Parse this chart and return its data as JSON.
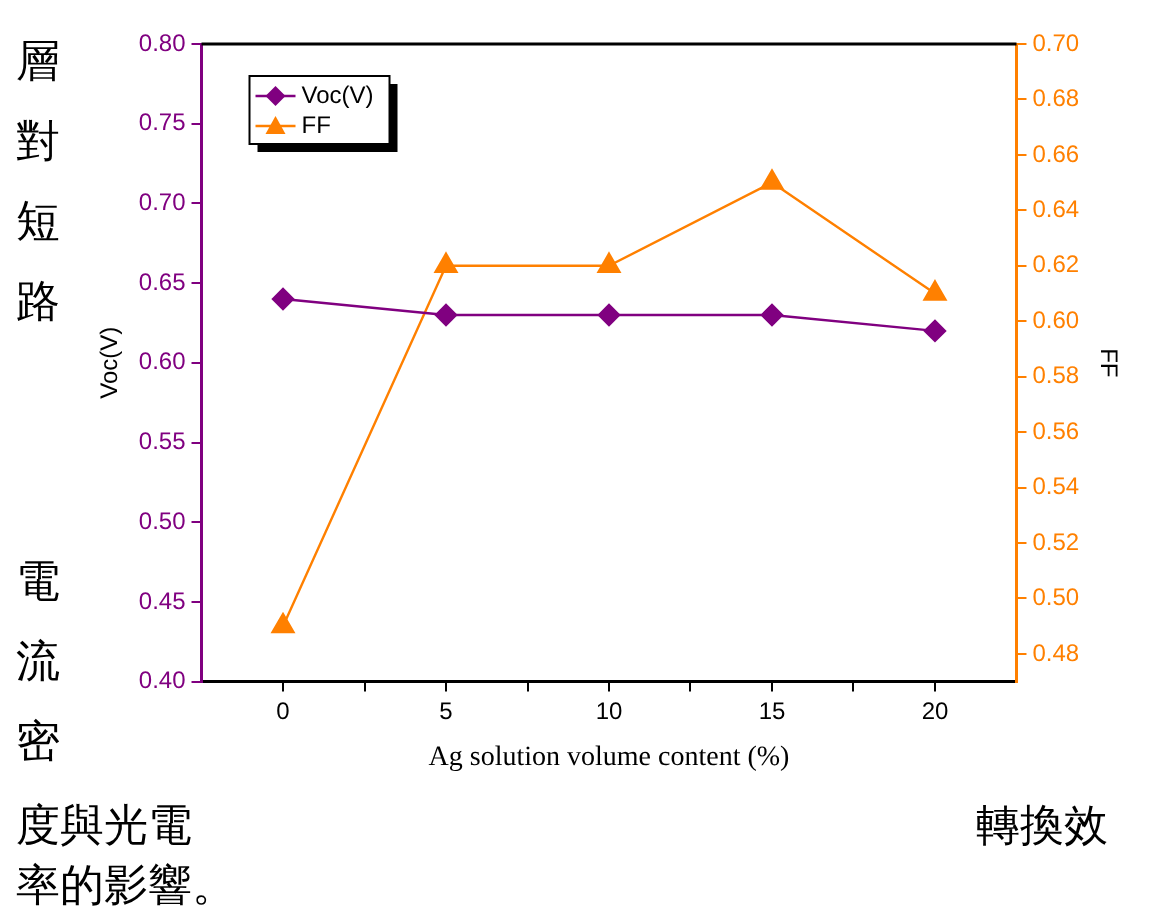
{
  "chart_data": {
    "type": "line",
    "xlabel": "Ag solution volume content (%)",
    "ylabel": "Voc(V)",
    "y2label": "FF",
    "x": [
      0,
      5,
      10,
      15,
      20
    ],
    "series": [
      {
        "name": "Voc(V)",
        "color": "#800080",
        "values": [
          0.64,
          0.63,
          0.63,
          0.63,
          0.62
        ],
        "marker": "diamond"
      },
      {
        "name": "FF",
        "color": "#ff8000",
        "values": [
          0.49,
          0.62,
          0.62,
          0.65,
          0.61
        ],
        "marker": "triangle",
        "axis": "y2"
      }
    ],
    "xlim": [
      -2.5,
      22.5
    ],
    "xticks": [
      0,
      {
        "value": 2.5,
        "label": null
      },
      5,
      {
        "value": 7.5,
        "label": null
      },
      10,
      {
        "value": 12.5,
        "label": null
      },
      15,
      {
        "value": 17.5,
        "label": null
      },
      20
    ],
    "ylim": [
      0.4,
      0.8
    ],
    "yticks": [
      {
        "value": 0.4,
        "label": "0.40"
      },
      0.45,
      {
        "value": 0.5,
        "label": "0.50"
      },
      0.55,
      {
        "value": 0.6,
        "label": "0.60"
      },
      0.65,
      {
        "value": 0.7,
        "label": "0.70"
      },
      0.75,
      {
        "value": 0.8,
        "label": "0.80"
      }
    ],
    "y2lim": [
      0.47,
      0.7
    ],
    "y2ticks": [
      0.48,
      {
        "value": 0.5,
        "label": "0.50"
      },
      0.52,
      0.54,
      0.56,
      0.58,
      {
        "value": 0.6,
        "label": "0.60"
      },
      0.62,
      0.64,
      0.66,
      0.68,
      {
        "value": 0.7,
        "label": "0.70"
      }
    ],
    "grid": false,
    "legend": "top left",
    "line_style": "solid",
    "annotations": [
      "層對短路",
      "電流密",
      "度與光電",
      "轉換效",
      "率的影響。"
    ]
  }
}
